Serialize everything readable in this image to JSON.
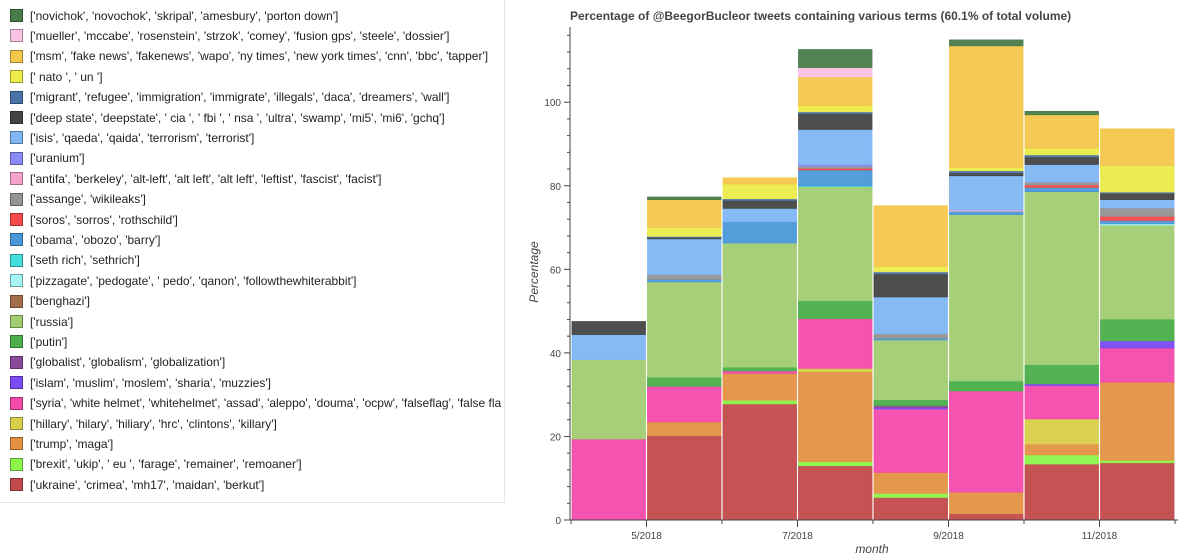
{
  "chart_data": {
    "type": "bar",
    "stacked": true,
    "title": "Percentage of @BeegorBucleor tweets containing various terms (60.1% of total volume)",
    "xlabel": "month",
    "ylabel": "Percentage",
    "ylim": [
      0,
      118
    ],
    "yticks": [
      0,
      20,
      40,
      60,
      80,
      100
    ],
    "months": [
      "4/2018",
      "5/2018",
      "6/2018",
      "7/2018",
      "8/2018",
      "9/2018",
      "10/2018",
      "11/2018"
    ],
    "xtick_labels": [
      "5/2018",
      "7/2018",
      "9/2018",
      "11/2018"
    ],
    "legend_position": "outside-left",
    "series": [
      {
        "name": "['novichok', 'novochok', 'skripal', 'amesbury', 'porton down']",
        "color": "#4a7c4a",
        "values": [
          0,
          0.6,
          0,
          4.3,
          0,
          1.4,
          0.8,
          0
        ]
      },
      {
        "name": "['mueller', 'mccabe', 'rosenstein', 'strzok', 'comey', 'fusion gps', 'steele', 'dossier']",
        "color": "#f8c3e3",
        "values": [
          0,
          0,
          0,
          2.2,
          0,
          0,
          0,
          0
        ]
      },
      {
        "name": "['msm', 'fake news', 'fakenews', 'wapo', 'ny times', 'new york times', 'cnn', 'bbc', 'tapper']",
        "color": "#f4c64a",
        "values": [
          0,
          6.7,
          1.5,
          6.9,
          14.5,
          29.1,
          8.0,
          8.8
        ]
      },
      {
        "name": "[' nato ', ' un ']",
        "color": "#ebeb4a",
        "values": [
          0,
          2.1,
          3.5,
          1.5,
          1.3,
          0.8,
          1.6,
          6.3
        ]
      },
      {
        "name": "['migrant', 'refugee', 'immigration', 'immigrate', 'illegals', 'daca', 'dreamers', 'wall']",
        "color": "#4a73aa",
        "values": [
          0,
          0.3,
          0.4,
          0.4,
          0.5,
          0.5,
          0.5,
          0.3
        ]
      },
      {
        "name": "['deep state', 'deepstate', ' cia ', ' fbi ', ' nsa ', 'ultra', 'swamp', 'mi5', 'mi6', 'gchq']",
        "color": "#444444",
        "values": [
          3.1,
          0.3,
          1.9,
          3.8,
          5.5,
          0.7,
          1.8,
          1.5
        ]
      },
      {
        "name": "['isis', 'qaeda', 'qaida', 'terrorism', 'terrorist']",
        "color": "#80b6f4",
        "values": [
          6.0,
          8.5,
          3.2,
          8.4,
          8.8,
          8.2,
          4.2,
          2.0
        ]
      },
      {
        "name": "['uranium']",
        "color": "#8a8af4",
        "values": [
          0,
          0,
          0,
          0.4,
          0,
          0,
          0,
          0
        ]
      },
      {
        "name": "['antifa', 'berkeley', 'alt-left', 'alt left', 'alt left', 'leftist', 'fascist', 'facist']",
        "color": "#f4a3cb",
        "values": [
          0,
          0,
          0,
          0,
          0,
          0.3,
          0,
          0
        ]
      },
      {
        "name": "['assange', 'wikileaks']",
        "color": "#939393",
        "values": [
          0,
          1.2,
          0,
          0.5,
          1.1,
          0,
          0.7,
          2.0
        ]
      },
      {
        "name": "['soros', 'sorros', 'rothschild']",
        "color": "#f44a4a",
        "values": [
          0,
          0,
          0,
          0.4,
          0,
          0,
          0.6,
          1.0
        ]
      },
      {
        "name": "['obama', 'obozo', 'barry']",
        "color": "#4a98d8",
        "values": [
          0,
          0.6,
          5.1,
          3.8,
          0.4,
          0.8,
          1.0,
          0.8
        ]
      },
      {
        "name": "['seth rich', 'sethrich']",
        "color": "#44dede",
        "values": [
          0,
          0,
          0,
          0.2,
          0,
          0,
          0,
          0
        ]
      },
      {
        "name": "['pizzagate', 'pedogate', ' pedo', 'qanon', 'followthewhiterabbit']",
        "color": "#a6f4f4",
        "values": [
          0,
          0,
          0,
          0,
          0,
          0,
          0,
          0.3
        ]
      },
      {
        "name": "['benghazi']",
        "color": "#a36d4a",
        "values": [
          0,
          0,
          0,
          0,
          0,
          0,
          0,
          0
        ]
      },
      {
        "name": "['russia']",
        "color": "#a2cc72",
        "values": [
          19.0,
          22.8,
          29.7,
          27.3,
          14.3,
          39.8,
          41.4,
          22.5
        ]
      },
      {
        "name": "['putin']",
        "color": "#4aaf4a",
        "values": [
          0,
          2.2,
          0.9,
          4.3,
          1.4,
          2.4,
          4.6,
          5.2
        ]
      },
      {
        "name": "['globalist', 'globalism', 'globalization']",
        "color": "#8a4a9a",
        "values": [
          0,
          0,
          0,
          0,
          0.5,
          0,
          0,
          0
        ]
      },
      {
        "name": "['islam', 'muslim', 'moslem', 'sharia', 'muzzies']",
        "color": "#7a4af4",
        "values": [
          0,
          0,
          0,
          0,
          0.3,
          0,
          0.4,
          1.7
        ]
      },
      {
        "name": "['syria', 'white helmet', 'whitehelmet', 'assad', 'aleppo', 'douma', 'ocpw', 'falseflag', 'false fla",
        "color": "#f44aac",
        "values": [
          19.4,
          8.5,
          0.6,
          11.9,
          15.2,
          24.2,
          8.0,
          8.2
        ]
      },
      {
        "name": "['hillary', 'hilary', 'hiliary', 'hrc', 'clintons', 'killary']",
        "color": "#d8cf4a",
        "values": [
          0,
          0,
          0,
          0.8,
          0,
          0,
          6.0,
          0
        ]
      },
      {
        "name": "['trump', 'maga']",
        "color": "#e39244",
        "values": [
          0,
          3.3,
          6.4,
          21.5,
          5.0,
          5.2,
          2.6,
          18.7
        ]
      },
      {
        "name": "['brexit', 'ukip', ' eu ', 'farage', 'remainer', 'remoaner']",
        "color": "#8cf44a",
        "values": [
          0,
          0,
          0.9,
          1.0,
          1.0,
          0,
          2.2,
          0.6
        ]
      },
      {
        "name": "['ukraine', 'crimea', 'mh17', 'maidan', 'berkut']",
        "color": "#c24a4a",
        "values": [
          0,
          20.2,
          27.8,
          13.0,
          5.4,
          1.5,
          13.4,
          13.7
        ]
      }
    ]
  }
}
